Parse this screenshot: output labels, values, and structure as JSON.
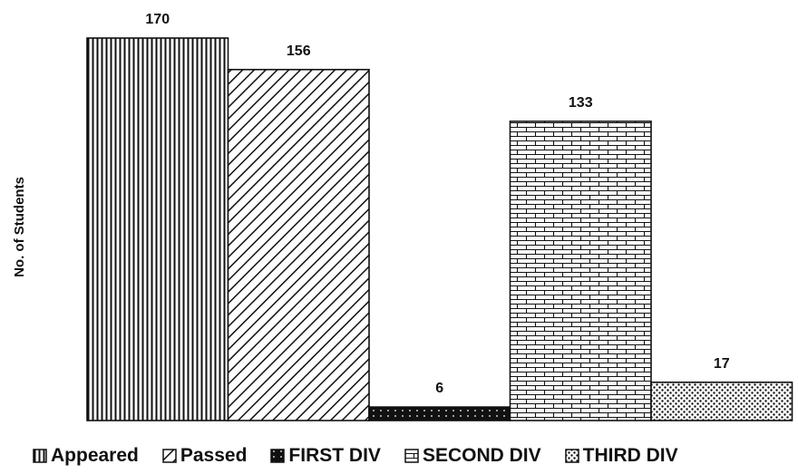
{
  "chart_data": {
    "type": "bar",
    "title": "",
    "xlabel": "",
    "ylabel": "No. of Students",
    "categories": [
      "Appeared",
      "Passed",
      "FIRST DIV",
      "SECOND DIV",
      "THIRD DIV"
    ],
    "values": [
      170,
      156,
      6,
      133,
      17
    ],
    "data_labels": [
      "170",
      "156",
      "6",
      "133",
      "17"
    ],
    "ylim": [
      0,
      170
    ],
    "grid": false,
    "legend_position": "bottom",
    "patterns": [
      "vertical-lines",
      "diagonal-lines",
      "dotted-dark",
      "brick",
      "dotted-light"
    ],
    "colors": {
      "ink": "#111111",
      "background": "#ffffff"
    }
  }
}
